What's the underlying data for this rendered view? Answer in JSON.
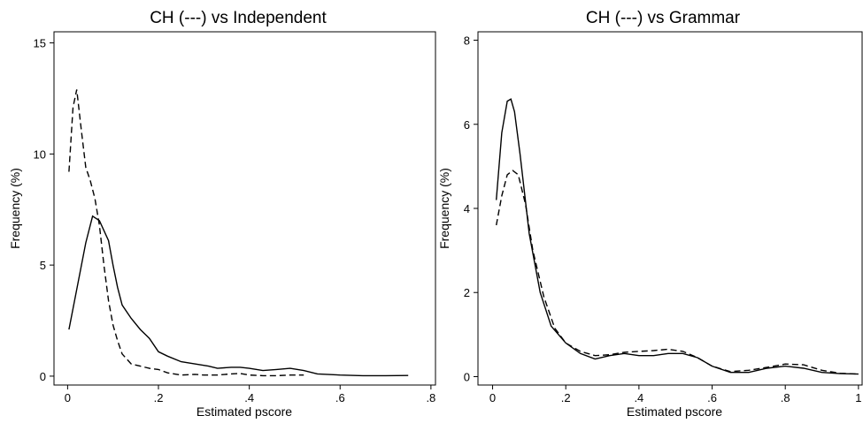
{
  "chart_data": [
    {
      "type": "line",
      "title": "CH (---) vs Independent",
      "xlabel": "Estimated pscore",
      "ylabel": "Frequency (%)",
      "xlim": [
        -0.03,
        0.81
      ],
      "ylim": [
        -0.4,
        15.5
      ],
      "xticks": [
        0,
        0.2,
        0.4,
        0.6,
        0.8
      ],
      "xtick_labels": [
        "0",
        ".2",
        ".4",
        ".6",
        ".8"
      ],
      "yticks": [
        0,
        5,
        10,
        15
      ],
      "ytick_labels": [
        "0",
        "5",
        "10",
        "15"
      ],
      "grid": false,
      "series": [
        {
          "style": "solid",
          "x": [
            0.003,
            0.02,
            0.04,
            0.055,
            0.07,
            0.09,
            0.1,
            0.11,
            0.12,
            0.14,
            0.16,
            0.18,
            0.2,
            0.22,
            0.25,
            0.28,
            0.31,
            0.33,
            0.36,
            0.38,
            0.4,
            0.43,
            0.46,
            0.49,
            0.52,
            0.55,
            0.6,
            0.65,
            0.7,
            0.75
          ],
          "y": [
            2.1,
            3.9,
            6.0,
            7.2,
            7.0,
            6.1,
            5.0,
            4.0,
            3.2,
            2.6,
            2.1,
            1.7,
            1.1,
            0.9,
            0.65,
            0.55,
            0.45,
            0.35,
            0.4,
            0.4,
            0.35,
            0.25,
            0.3,
            0.35,
            0.25,
            0.1,
            0.05,
            0.02,
            0.02,
            0.03
          ]
        },
        {
          "style": "dashed",
          "x": [
            0.003,
            0.012,
            0.02,
            0.03,
            0.04,
            0.05,
            0.06,
            0.07,
            0.08,
            0.09,
            0.1,
            0.11,
            0.12,
            0.14,
            0.16,
            0.18,
            0.2,
            0.22,
            0.25,
            0.28,
            0.3,
            0.33,
            0.36,
            0.38,
            0.4,
            0.43,
            0.46,
            0.49,
            0.52
          ],
          "y": [
            9.2,
            12.1,
            12.9,
            11.1,
            9.4,
            8.8,
            8.0,
            6.8,
            5.0,
            3.4,
            2.3,
            1.6,
            1.0,
            0.55,
            0.45,
            0.35,
            0.3,
            0.15,
            0.05,
            0.08,
            0.05,
            0.05,
            0.1,
            0.12,
            0.05,
            0.02,
            0.02,
            0.05,
            0.05
          ]
        }
      ]
    },
    {
      "type": "line",
      "title": "CH (---) vs Grammar",
      "xlabel": "Estimated pscore",
      "ylabel": "Frequency (%)",
      "xlim": [
        -0.04,
        1.01
      ],
      "ylim": [
        -0.2,
        8.2
      ],
      "xticks": [
        0,
        0.2,
        0.4,
        0.6,
        0.8,
        1.0
      ],
      "xtick_labels": [
        "0",
        ".2",
        ".4",
        ".6",
        ".8",
        "1"
      ],
      "yticks": [
        0,
        2,
        4,
        6,
        8
      ],
      "ytick_labels": [
        "0",
        "2",
        "4",
        "6",
        "8"
      ],
      "grid": false,
      "series": [
        {
          "style": "solid",
          "x": [
            0.01,
            0.025,
            0.04,
            0.05,
            0.06,
            0.075,
            0.1,
            0.13,
            0.16,
            0.2,
            0.24,
            0.28,
            0.32,
            0.36,
            0.4,
            0.44,
            0.48,
            0.52,
            0.56,
            0.6,
            0.65,
            0.7,
            0.75,
            0.8,
            0.85,
            0.9,
            0.95,
            1.0
          ],
          "y": [
            4.2,
            5.8,
            6.55,
            6.6,
            6.3,
            5.3,
            3.4,
            2.0,
            1.2,
            0.8,
            0.55,
            0.42,
            0.5,
            0.55,
            0.5,
            0.5,
            0.55,
            0.55,
            0.45,
            0.25,
            0.1,
            0.1,
            0.2,
            0.25,
            0.2,
            0.1,
            0.07,
            0.06
          ]
        },
        {
          "style": "dashed",
          "x": [
            0.01,
            0.025,
            0.04,
            0.055,
            0.07,
            0.09,
            0.11,
            0.14,
            0.17,
            0.2,
            0.24,
            0.28,
            0.32,
            0.36,
            0.4,
            0.44,
            0.48,
            0.52,
            0.56,
            0.6,
            0.65,
            0.7,
            0.75,
            0.8,
            0.85,
            0.9,
            0.95,
            1.0
          ],
          "y": [
            3.6,
            4.3,
            4.8,
            4.9,
            4.8,
            4.1,
            3.0,
            1.9,
            1.15,
            0.8,
            0.6,
            0.5,
            0.52,
            0.58,
            0.6,
            0.62,
            0.65,
            0.6,
            0.45,
            0.25,
            0.12,
            0.15,
            0.22,
            0.3,
            0.28,
            0.15,
            0.08,
            0.06
          ]
        }
      ]
    }
  ]
}
